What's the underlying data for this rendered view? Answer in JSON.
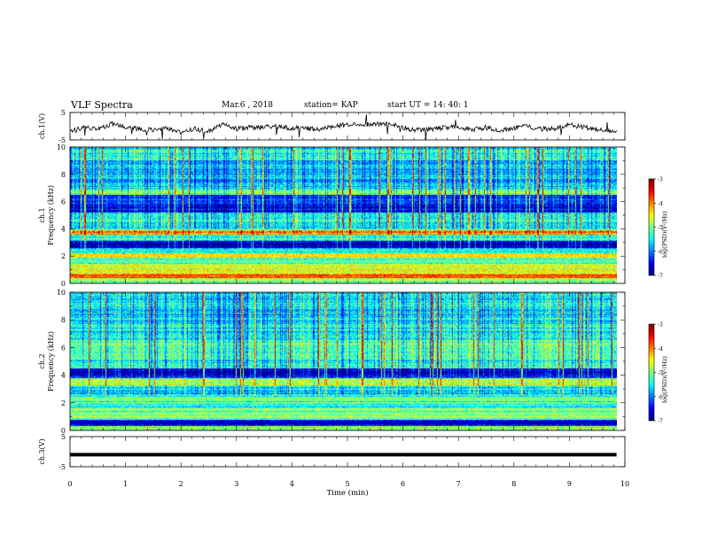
{
  "header": {
    "title": "VLF Spectra",
    "date": "Mar.6 , 2018",
    "station": "station= KAP",
    "start_time": "start UT = 14: 40: 1"
  },
  "chart_data": [
    {
      "panel": "ch1-waveform",
      "type": "line",
      "ylabel": "ch.1(V)",
      "ylim": [
        -5,
        5
      ],
      "yticks": [
        "5",
        "-5"
      ],
      "xlim": [
        0,
        10
      ],
      "color": "#000000",
      "x": [
        0,
        0.25,
        0.5,
        0.75,
        1.0,
        1.25,
        1.5,
        1.75,
        2.0,
        2.25,
        2.5,
        2.75,
        3.0,
        3.25,
        3.5,
        3.75,
        4.0,
        4.25,
        4.5,
        4.75,
        5.0,
        5.25,
        5.5,
        5.75,
        6.0,
        6.25,
        6.5,
        6.75,
        7.0,
        7.25,
        7.5,
        7.75,
        8.0,
        8.25,
        8.5,
        8.75,
        9.0,
        9.25,
        9.5,
        9.75,
        9.85
      ],
      "y": [
        -2.0,
        -0.5,
        -1.0,
        0.8,
        -0.5,
        -1.0,
        -1.5,
        -0.8,
        -2.5,
        -1.0,
        -2.0,
        0.5,
        -1.0,
        -0.5,
        -0.2,
        0.0,
        -0.8,
        -0.6,
        -1.5,
        0.2,
        0.5,
        0.8,
        0.6,
        1.0,
        -0.5,
        -1.5,
        -1.0,
        -0.5,
        -0.2,
        -1.2,
        -0.5,
        -1.5,
        -0.6,
        0.0,
        -1.0,
        -0.8,
        0.8,
        -0.5,
        -1.0,
        -1.5,
        -1.5
      ]
    },
    {
      "panel": "ch1-spectrogram",
      "type": "heatmap",
      "ylabel": "ch.1",
      "ylabel2": "Frequency (kHz)",
      "xlim": [
        0,
        10
      ],
      "ylim": [
        0,
        10
      ],
      "yticks": [
        "0",
        "2",
        "4",
        "6",
        "8",
        "10"
      ],
      "colorbar_label": "log(PSD)(V²/Hz)",
      "colorbar_ticks": [
        "-3",
        "-4",
        "-5",
        "-6",
        "-7"
      ],
      "colorbar_range": [
        -7,
        -3
      ],
      "bands_khz": [
        {
          "lo": 9.0,
          "hi": 10.0,
          "level": -5.5
        },
        {
          "lo": 7.0,
          "hi": 9.0,
          "level": -5.8
        },
        {
          "lo": 6.5,
          "hi": 6.9,
          "level": -5.0
        },
        {
          "lo": 5.8,
          "hi": 6.5,
          "level": -6.3
        },
        {
          "lo": 5.2,
          "hi": 5.8,
          "level": -6.5
        },
        {
          "lo": 4.3,
          "hi": 5.2,
          "level": -5.5
        },
        {
          "lo": 3.6,
          "hi": 3.9,
          "level": -3.9
        },
        {
          "lo": 3.1,
          "hi": 3.6,
          "level": -5.4
        },
        {
          "lo": 2.6,
          "hi": 3.1,
          "level": -6.8
        },
        {
          "lo": 2.2,
          "hi": 2.6,
          "level": -5.6
        },
        {
          "lo": 1.9,
          "hi": 2.2,
          "level": -4.5
        },
        {
          "lo": 1.4,
          "hi": 1.9,
          "level": -5.3
        },
        {
          "lo": 0.7,
          "hi": 1.4,
          "level": -4.8
        },
        {
          "lo": 0.4,
          "hi": 0.7,
          "level": -3.8
        },
        {
          "lo": 0.0,
          "hi": 0.4,
          "level": -5.0
        }
      ]
    },
    {
      "panel": "ch2-spectrogram",
      "type": "heatmap",
      "ylabel": "ch.2",
      "ylabel2": "Frequency (kHz)",
      "xlim": [
        0,
        10
      ],
      "ylim": [
        0,
        10
      ],
      "yticks": [
        "0",
        "2",
        "4",
        "6",
        "8",
        "10"
      ],
      "colorbar_label": "log(PSD)(V²/Hz)",
      "colorbar_ticks": [
        "-3",
        "-4",
        "-5",
        "-6",
        "-7"
      ],
      "colorbar_range": [
        -7,
        -3
      ],
      "bands_khz": [
        {
          "lo": 8.0,
          "hi": 10.0,
          "level": -5.6
        },
        {
          "lo": 6.5,
          "hi": 8.0,
          "level": -5.5
        },
        {
          "lo": 5.5,
          "hi": 6.5,
          "level": -5.2
        },
        {
          "lo": 4.5,
          "hi": 5.5,
          "level": -5.4
        },
        {
          "lo": 3.8,
          "hi": 4.5,
          "level": -6.6
        },
        {
          "lo": 3.3,
          "hi": 3.8,
          "level": -4.8
        },
        {
          "lo": 2.6,
          "hi": 3.3,
          "level": -5.6
        },
        {
          "lo": 1.6,
          "hi": 2.6,
          "level": -5.3
        },
        {
          "lo": 0.8,
          "hi": 1.6,
          "level": -5.0
        },
        {
          "lo": 0.3,
          "hi": 0.8,
          "level": -6.7
        },
        {
          "lo": 0.0,
          "hi": 0.3,
          "level": -5.0
        }
      ]
    },
    {
      "panel": "ch3-waveform",
      "type": "line",
      "ylabel": "ch.3(V)",
      "ylim": [
        -5,
        5
      ],
      "yticks": [
        "5",
        "-5"
      ],
      "xlim": [
        0,
        10
      ],
      "x": [
        0,
        9.85
      ],
      "y": [
        -1.0,
        -1.0
      ],
      "xlabel": "Time (min)",
      "xticks": [
        "0",
        "1",
        "2",
        "3",
        "4",
        "5",
        "6",
        "7",
        "8",
        "9",
        "10"
      ]
    }
  ]
}
